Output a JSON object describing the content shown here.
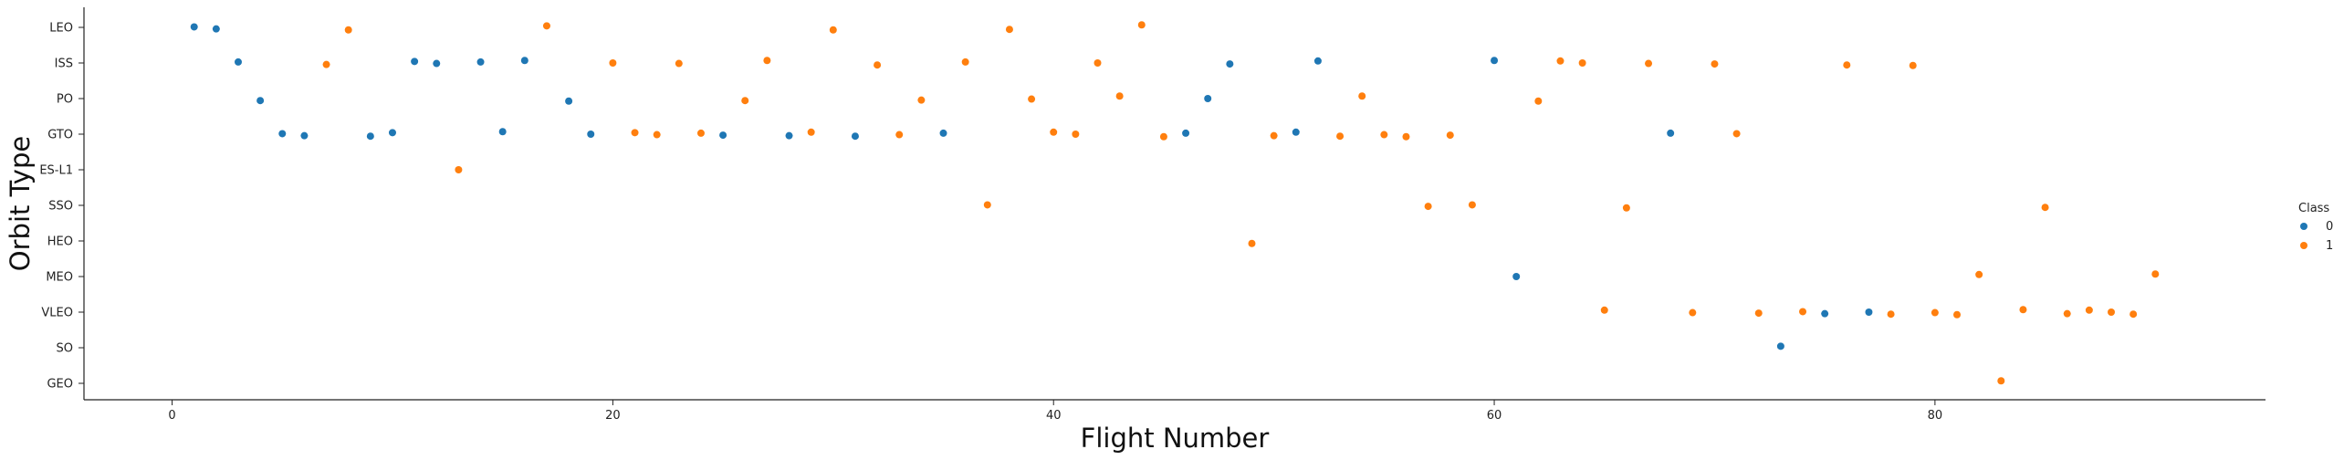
{
  "chart_data": {
    "type": "scatter",
    "xlabel": "Flight Number",
    "ylabel": "Orbit Type",
    "xlim": [
      -4,
      95
    ],
    "x_ticks": [
      0,
      20,
      40,
      60,
      80
    ],
    "categories_y": [
      "LEO",
      "ISS",
      "PO",
      "GTO",
      "ES-L1",
      "SSO",
      "HEO",
      "MEO",
      "VLEO",
      "SO",
      "GEO"
    ],
    "grid": false,
    "legend": {
      "title": "Class",
      "placement": "right",
      "entries": [
        "0",
        "1"
      ]
    },
    "colors": {
      "0": "#1f77b4",
      "1": "#ff7f0e"
    },
    "series": [
      {
        "name": "0",
        "points": [
          {
            "x": 1,
            "y": "LEO"
          },
          {
            "x": 2,
            "y": "LEO"
          },
          {
            "x": 3,
            "y": "ISS"
          },
          {
            "x": 4,
            "y": "PO"
          },
          {
            "x": 5,
            "y": "GTO"
          },
          {
            "x": 6,
            "y": "GTO"
          },
          {
            "x": 9,
            "y": "GTO"
          },
          {
            "x": 10,
            "y": "GTO"
          },
          {
            "x": 11,
            "y": "ISS"
          },
          {
            "x": 12,
            "y": "ISS"
          },
          {
            "x": 14,
            "y": "ISS"
          },
          {
            "x": 15,
            "y": "GTO"
          },
          {
            "x": 16,
            "y": "ISS"
          },
          {
            "x": 18,
            "y": "PO"
          },
          {
            "x": 19,
            "y": "GTO"
          },
          {
            "x": 25,
            "y": "GTO"
          },
          {
            "x": 28,
            "y": "GTO"
          },
          {
            "x": 31,
            "y": "GTO"
          },
          {
            "x": 35,
            "y": "GTO"
          },
          {
            "x": 46,
            "y": "GTO"
          },
          {
            "x": 47,
            "y": "PO"
          },
          {
            "x": 48,
            "y": "ISS"
          },
          {
            "x": 51,
            "y": "GTO"
          },
          {
            "x": 52,
            "y": "ISS"
          },
          {
            "x": 60,
            "y": "ISS"
          },
          {
            "x": 61,
            "y": "MEO"
          },
          {
            "x": 68,
            "y": "GTO"
          },
          {
            "x": 73,
            "y": "SO"
          },
          {
            "x": 75,
            "y": "VLEO"
          },
          {
            "x": 77,
            "y": "VLEO"
          }
        ]
      },
      {
        "name": "1",
        "points": [
          {
            "x": 7,
            "y": "ISS"
          },
          {
            "x": 8,
            "y": "LEO"
          },
          {
            "x": 13,
            "y": "ES-L1"
          },
          {
            "x": 17,
            "y": "LEO"
          },
          {
            "x": 20,
            "y": "ISS"
          },
          {
            "x": 21,
            "y": "GTO"
          },
          {
            "x": 22,
            "y": "GTO"
          },
          {
            "x": 23,
            "y": "ISS"
          },
          {
            "x": 24,
            "y": "GTO"
          },
          {
            "x": 26,
            "y": "PO"
          },
          {
            "x": 27,
            "y": "ISS"
          },
          {
            "x": 29,
            "y": "GTO"
          },
          {
            "x": 30,
            "y": "LEO"
          },
          {
            "x": 32,
            "y": "ISS"
          },
          {
            "x": 33,
            "y": "GTO"
          },
          {
            "x": 34,
            "y": "PO"
          },
          {
            "x": 36,
            "y": "ISS"
          },
          {
            "x": 37,
            "y": "SSO"
          },
          {
            "x": 38,
            "y": "LEO"
          },
          {
            "x": 39,
            "y": "PO"
          },
          {
            "x": 40,
            "y": "GTO"
          },
          {
            "x": 41,
            "y": "GTO"
          },
          {
            "x": 42,
            "y": "ISS"
          },
          {
            "x": 43,
            "y": "PO"
          },
          {
            "x": 44,
            "y": "LEO"
          },
          {
            "x": 45,
            "y": "GTO"
          },
          {
            "x": 49,
            "y": "HEO"
          },
          {
            "x": 50,
            "y": "GTO"
          },
          {
            "x": 53,
            "y": "GTO"
          },
          {
            "x": 54,
            "y": "PO"
          },
          {
            "x": 55,
            "y": "GTO"
          },
          {
            "x": 56,
            "y": "GTO"
          },
          {
            "x": 57,
            "y": "SSO"
          },
          {
            "x": 58,
            "y": "GTO"
          },
          {
            "x": 59,
            "y": "SSO"
          },
          {
            "x": 62,
            "y": "PO"
          },
          {
            "x": 63,
            "y": "ISS"
          },
          {
            "x": 64,
            "y": "ISS"
          },
          {
            "x": 65,
            "y": "VLEO"
          },
          {
            "x": 66,
            "y": "SSO"
          },
          {
            "x": 67,
            "y": "ISS"
          },
          {
            "x": 69,
            "y": "VLEO"
          },
          {
            "x": 70,
            "y": "ISS"
          },
          {
            "x": 71,
            "y": "GTO"
          },
          {
            "x": 72,
            "y": "VLEO"
          },
          {
            "x": 74,
            "y": "VLEO"
          },
          {
            "x": 76,
            "y": "ISS"
          },
          {
            "x": 78,
            "y": "VLEO"
          },
          {
            "x": 79,
            "y": "ISS"
          },
          {
            "x": 80,
            "y": "VLEO"
          },
          {
            "x": 81,
            "y": "VLEO"
          },
          {
            "x": 82,
            "y": "MEO"
          },
          {
            "x": 83,
            "y": "GEO"
          },
          {
            "x": 84,
            "y": "VLEO"
          },
          {
            "x": 85,
            "y": "SSO"
          },
          {
            "x": 86,
            "y": "VLEO"
          },
          {
            "x": 87,
            "y": "VLEO"
          },
          {
            "x": 88,
            "y": "VLEO"
          },
          {
            "x": 89,
            "y": "VLEO"
          },
          {
            "x": 90,
            "y": "MEO"
          }
        ]
      }
    ]
  }
}
